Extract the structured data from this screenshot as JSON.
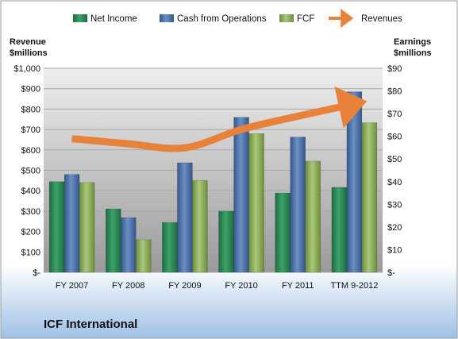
{
  "company_name": "ICF International",
  "colors": {
    "net_income": "#2e8b57",
    "cash_from_operations": "#4a6fa5",
    "fcf": "#8fb05a",
    "revenues": "#e8823a"
  },
  "chart_data": {
    "type": "bar",
    "categories": [
      "FY 2007",
      "FY 2008",
      "FY 2009",
      "FY 2010",
      "FY 2011",
      "TTM 9-2012"
    ],
    "series": [
      {
        "name": "Net Income",
        "axis": "right",
        "values": [
          40,
          28,
          22,
          27,
          35,
          37.5
        ]
      },
      {
        "name": "Cash from Operations",
        "axis": "left",
        "values": [
          480,
          268,
          537,
          760,
          663,
          885
        ]
      },
      {
        "name": "FCF",
        "axis": "left",
        "values": [
          440,
          160,
          450,
          680,
          545,
          733
        ]
      },
      {
        "name": "Revenues",
        "axis": "left",
        "type": "line",
        "values": [
          655,
          630,
          610,
          700,
          765,
          825
        ]
      }
    ],
    "left_axis": {
      "title_line1": "Revenue",
      "title_line2": "$millions",
      "ticks": [
        "$-",
        "$100",
        "$200",
        "$300",
        "$400",
        "$500",
        "$600",
        "$700",
        "$800",
        "$900",
        "$1,000"
      ],
      "range": [
        0,
        1000
      ]
    },
    "right_axis": {
      "title_line1": "Earnings",
      "title_line2": "$millions",
      "ticks": [
        "$-",
        "$10",
        "$20",
        "$30",
        "$40",
        "$50",
        "$60",
        "$70",
        "$80",
        "$90"
      ],
      "range": [
        0,
        90
      ]
    },
    "legend": [
      "Net Income",
      "Cash from Operations",
      "FCF",
      "Revenues"
    ],
    "legend_position": "top",
    "grid": true
  }
}
